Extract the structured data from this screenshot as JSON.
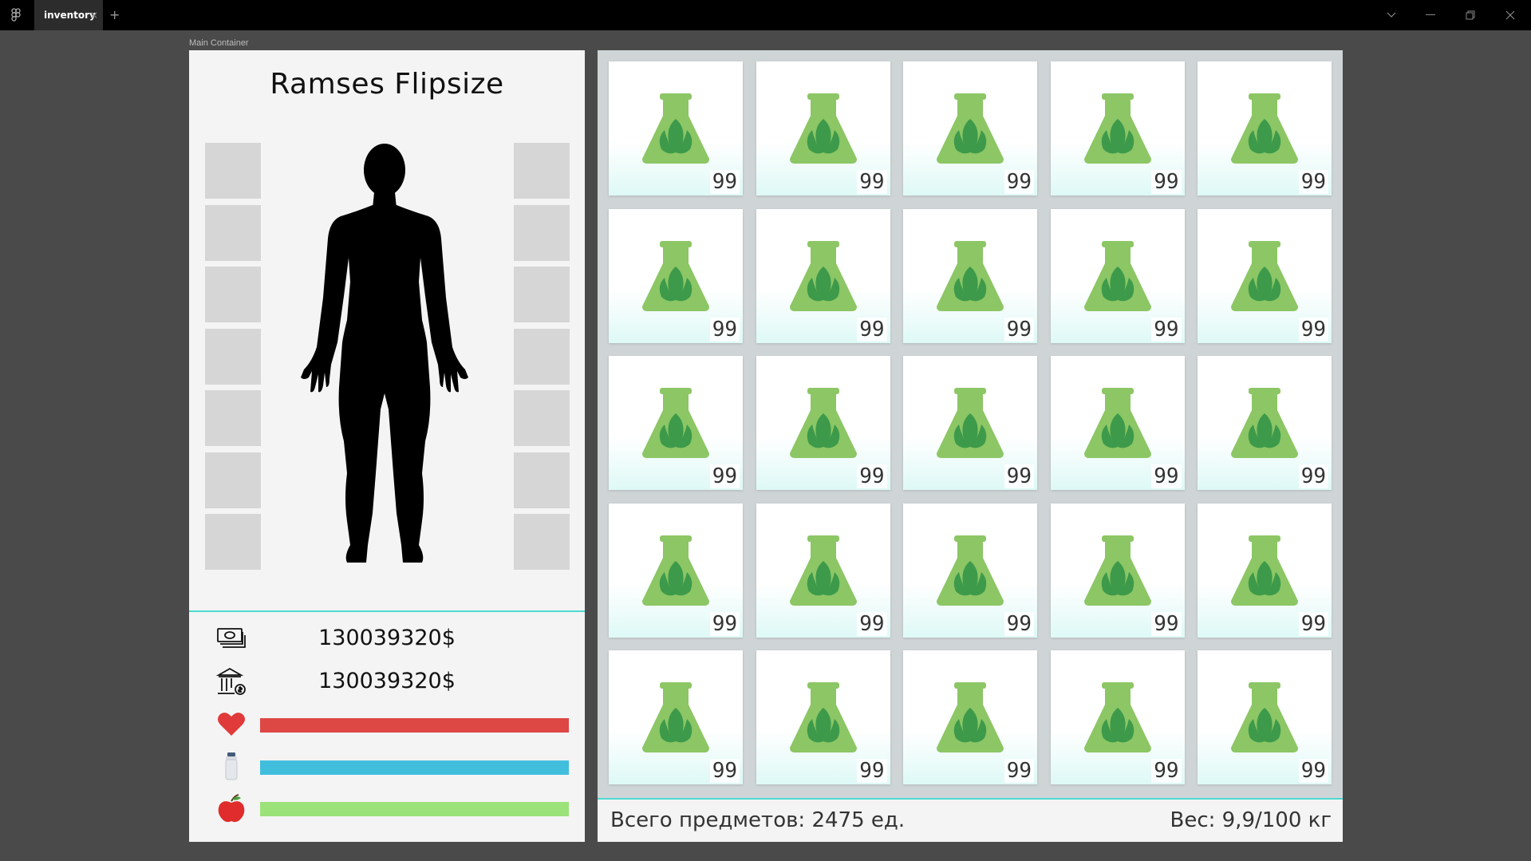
{
  "window": {
    "tab_label": "inventory",
    "tab_close": "×",
    "tab_add": "+",
    "frame_label": "Main Container"
  },
  "character": {
    "name": "Ramses Flipsize",
    "left_slots": 7,
    "right_slots": 7
  },
  "money": {
    "cash": "130039320$",
    "bank": "130039320$"
  },
  "stats": [
    {
      "name": "health",
      "icon": "heart-icon",
      "color": "#dd4744",
      "level": 1.0
    },
    {
      "name": "thirst",
      "icon": "bottle-icon",
      "color": "#42bedd",
      "level": 1.0
    },
    {
      "name": "hunger",
      "icon": "apple-icon",
      "color": "#9be27a",
      "level": 1.0
    }
  ],
  "inventory": {
    "items": [
      {
        "icon": "herb-flask-icon",
        "count": "99"
      },
      {
        "icon": "herb-flask-icon",
        "count": "99"
      },
      {
        "icon": "herb-flask-icon",
        "count": "99"
      },
      {
        "icon": "herb-flask-icon",
        "count": "99"
      },
      {
        "icon": "herb-flask-icon",
        "count": "99"
      },
      {
        "icon": "herb-flask-icon",
        "count": "99"
      },
      {
        "icon": "herb-flask-icon",
        "count": "99"
      },
      {
        "icon": "herb-flask-icon",
        "count": "99"
      },
      {
        "icon": "herb-flask-icon",
        "count": "99"
      },
      {
        "icon": "herb-flask-icon",
        "count": "99"
      },
      {
        "icon": "herb-flask-icon",
        "count": "99"
      },
      {
        "icon": "herb-flask-icon",
        "count": "99"
      },
      {
        "icon": "herb-flask-icon",
        "count": "99"
      },
      {
        "icon": "herb-flask-icon",
        "count": "99"
      },
      {
        "icon": "herb-flask-icon",
        "count": "99"
      },
      {
        "icon": "herb-flask-icon",
        "count": "99"
      },
      {
        "icon": "herb-flask-icon",
        "count": "99"
      },
      {
        "icon": "herb-flask-icon",
        "count": "99"
      },
      {
        "icon": "herb-flask-icon",
        "count": "99"
      },
      {
        "icon": "herb-flask-icon",
        "count": "99"
      },
      {
        "icon": "herb-flask-icon",
        "count": "99"
      },
      {
        "icon": "herb-flask-icon",
        "count": "99"
      },
      {
        "icon": "herb-flask-icon",
        "count": "99"
      },
      {
        "icon": "herb-flask-icon",
        "count": "99"
      },
      {
        "icon": "herb-flask-icon",
        "count": "99"
      }
    ],
    "total_label": "Всего предметов: 2475 ед.",
    "weight_label": "Вес: 9,9/100 кг"
  },
  "colors": {
    "accent": "#4ed9d0",
    "flask": "#8cc665",
    "leaf": "#3d9a4a"
  }
}
